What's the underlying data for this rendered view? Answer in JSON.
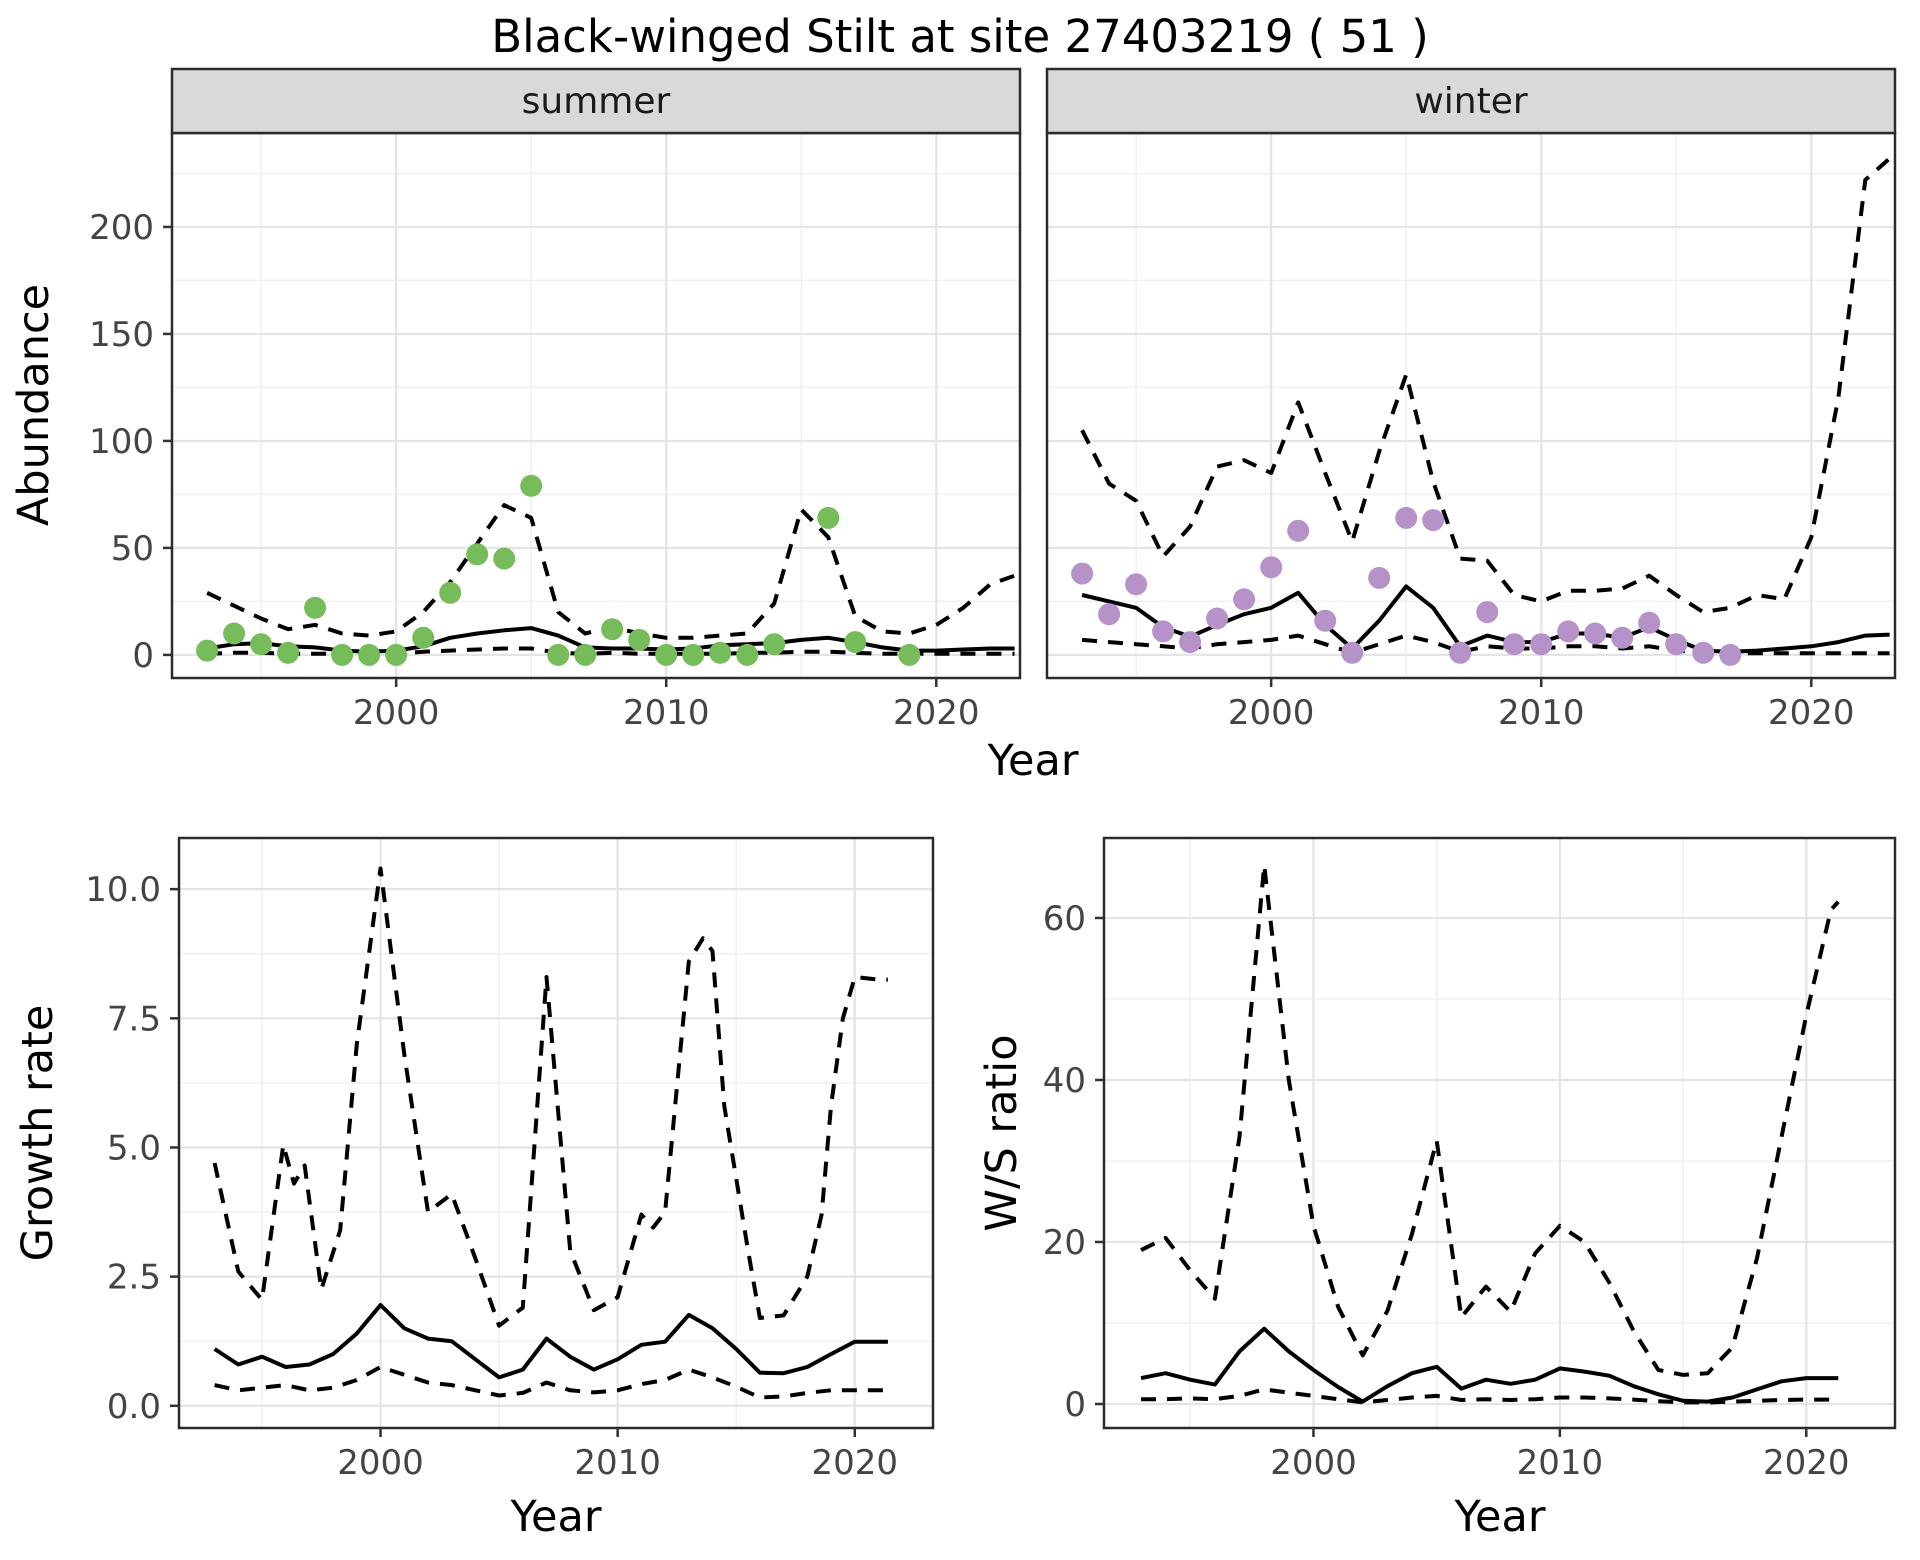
{
  "title": "Black-winged Stilt at site 27403219 ( 51 )",
  "facets": {
    "summer_label": "summer",
    "winter_label": "winter"
  },
  "axis_titles": {
    "abundance": "Abundance",
    "year_top": "Year",
    "growth_rate": "Growth rate",
    "ws_ratio": "W/S ratio",
    "year_bottom_left": "Year",
    "year_bottom_right": "Year"
  },
  "colors": {
    "summer_point": "#76BC5B",
    "winter_point": "#B593C8",
    "mean_line": "#000000",
    "ci_line": "#000000",
    "grid_major": "#E4E4E4",
    "grid_minor": "#F0F0F0",
    "strip_fill": "#D9D9D9",
    "strip_border": "#2B2B2B",
    "panel_border": "#2B2B2B",
    "tick_mark": "#333333",
    "tick_label": "#444444"
  },
  "chart_data": [
    {
      "id": "abundance_summer",
      "type": "line+scatter",
      "facet_label": "summer",
      "xlabel": "Year",
      "ylabel": "Abundance",
      "xlim": [
        1991.7,
        2023.1
      ],
      "ylim": [
        -10.8,
        243.9
      ],
      "x_ticks": [
        2000,
        2010,
        2020
      ],
      "x_tick_labels": [
        "2000",
        "2010",
        "2020"
      ],
      "x_minor": [
        1995,
        2005,
        2015
      ],
      "y_ticks": [
        0,
        50,
        100,
        150,
        200
      ],
      "y_tick_labels": [
        "0",
        "50",
        "100",
        "150",
        "200"
      ],
      "y_minor": [
        25,
        75,
        125,
        175,
        225
      ],
      "point_color": "#76BC5B",
      "series": {
        "observed_points": {
          "years": [
            1993,
            1994,
            1995,
            1996,
            1997,
            1998,
            1999,
            2000,
            2001,
            2002,
            2003,
            2004,
            2005,
            2006,
            2007,
            2008,
            2009,
            2010,
            2011,
            2012,
            2013,
            2014,
            2016,
            2017,
            2019
          ],
          "values": [
            2,
            10,
            5,
            1,
            22,
            0,
            0,
            0,
            8,
            29,
            47,
            45,
            79,
            0,
            0,
            12,
            7,
            0,
            0,
            1,
            0,
            5,
            64,
            6,
            0
          ]
        },
        "mean": {
          "years": [
            1993,
            1994,
            1995,
            1996,
            1997,
            1998,
            1999,
            2000,
            2001,
            2002,
            2003,
            2004,
            2005,
            2006,
            2007,
            2008,
            2009,
            2010,
            2011,
            2012,
            2013,
            2014,
            2015,
            2016,
            2017,
            2018,
            2019,
            2020,
            2021,
            2022,
            2022.9
          ],
          "values": [
            3,
            5,
            5.5,
            4,
            3.5,
            2,
            1.5,
            2,
            4,
            8,
            10,
            11.5,
            12.5,
            9,
            3.5,
            3,
            3,
            2.5,
            3,
            4.5,
            5,
            5.5,
            7,
            8,
            6,
            3.5,
            2,
            2,
            2.5,
            3,
            3
          ]
        },
        "upper_ci": {
          "years": [
            1993,
            1994,
            1995,
            1996,
            1997,
            1998,
            1999,
            2000,
            2001,
            2002,
            2003,
            2004,
            2005,
            2006,
            2007,
            2008,
            2009,
            2010,
            2011,
            2012,
            2013,
            2014,
            2015,
            2016,
            2017,
            2018,
            2019,
            2020,
            2021,
            2022,
            2022.9
          ],
          "values": [
            29,
            23,
            17,
            12,
            14,
            10,
            9,
            11,
            20,
            34,
            52,
            70,
            64,
            20,
            10,
            13,
            10,
            8,
            8,
            9,
            10,
            24,
            68,
            55,
            18,
            11,
            10,
            14,
            22,
            33,
            37
          ]
        },
        "lower_ci": {
          "years": [
            1993,
            1994,
            1995,
            1996,
            1997,
            1998,
            1999,
            2000,
            2001,
            2002,
            2003,
            2004,
            2005,
            2006,
            2007,
            2008,
            2009,
            2010,
            2011,
            2012,
            2013,
            2014,
            2015,
            2016,
            2017,
            2018,
            2019,
            2020,
            2021,
            2022,
            2022.9
          ],
          "values": [
            0.5,
            1,
            1,
            0.5,
            0.5,
            0.5,
            0.5,
            0.5,
            1.5,
            2,
            2.5,
            3,
            3,
            1,
            0.5,
            1,
            0.5,
            0.5,
            0.5,
            0.5,
            1,
            1,
            1.5,
            1.5,
            1,
            0.5,
            0.5,
            0.5,
            0.5,
            0.5,
            0.5
          ]
        }
      }
    },
    {
      "id": "abundance_winter",
      "type": "line+scatter",
      "facet_label": "winter",
      "xlabel": "Year",
      "ylabel": "Abundance",
      "xlim": [
        1991.7,
        2023.1
      ],
      "ylim": [
        -10.8,
        243.9
      ],
      "x_ticks": [
        2000,
        2010,
        2020
      ],
      "x_tick_labels": [
        "2000",
        "2010",
        "2020"
      ],
      "x_minor": [
        1995,
        2005,
        2015
      ],
      "y_ticks": [
        0,
        50,
        100,
        150,
        200
      ],
      "y_tick_labels": [
        "0",
        "50",
        "100",
        "150",
        "200"
      ],
      "y_minor": [
        25,
        75,
        125,
        175,
        225
      ],
      "point_color": "#B593C8",
      "series": {
        "observed_points": {
          "years": [
            1993,
            1994,
            1995,
            1996,
            1997,
            1998,
            1999,
            2000,
            2001,
            2002,
            2003,
            2004,
            2005,
            2006,
            2007,
            2008,
            2009,
            2010,
            2011,
            2012,
            2013,
            2014,
            2015,
            2016,
            2017
          ],
          "values": [
            38,
            19,
            33,
            11,
            6,
            17,
            26,
            41,
            58,
            16,
            1,
            36,
            64,
            63,
            1,
            20,
            5,
            5,
            11,
            10,
            8,
            15,
            5,
            1,
            0
          ]
        },
        "mean": {
          "years": [
            1993,
            1994,
            1995,
            1996,
            1997,
            1998,
            1999,
            2000,
            2001,
            2002,
            2003,
            2004,
            2005,
            2006,
            2007,
            2008,
            2009,
            2010,
            2011,
            2012,
            2013,
            2014,
            2015,
            2016,
            2017,
            2018,
            2019,
            2020,
            2021,
            2022,
            2022.9
          ],
          "values": [
            28,
            25,
            22,
            13,
            8.5,
            14,
            19,
            22,
            29,
            14,
            3,
            16,
            32,
            22,
            4,
            9,
            6,
            6,
            10,
            10,
            8,
            13,
            7,
            2,
            1.5,
            2,
            3,
            4,
            6,
            9,
            9.5
          ]
        },
        "upper_ci": {
          "years": [
            1993,
            1994,
            1995,
            1996,
            1997,
            1998,
            1999,
            2000,
            2001,
            2002,
            2003,
            2004,
            2005,
            2006,
            2007,
            2008,
            2009,
            2010,
            2011,
            2012,
            2013,
            2014,
            2015,
            2016,
            2017,
            2018,
            2019,
            2020,
            2021,
            2022,
            2022.9
          ],
          "values": [
            105,
            80,
            72,
            46,
            60,
            88,
            91,
            85,
            118,
            85,
            53,
            95,
            131,
            81,
            45,
            44,
            28,
            25,
            30,
            30,
            31,
            37,
            28,
            20,
            22,
            28,
            26,
            55,
            120,
            222,
            232
          ]
        },
        "lower_ci": {
          "years": [
            1993,
            1994,
            1995,
            1996,
            1997,
            1998,
            1999,
            2000,
            2001,
            2002,
            2003,
            2004,
            2005,
            2006,
            2007,
            2008,
            2009,
            2010,
            2011,
            2012,
            2013,
            2014,
            2015,
            2016,
            2017,
            2018,
            2019,
            2020,
            2021,
            2022,
            2022.9
          ],
          "values": [
            7,
            6,
            5,
            4,
            3,
            5,
            6,
            7,
            9,
            5,
            1,
            5,
            9,
            6,
            1.5,
            4,
            3,
            3,
            4,
            4,
            3,
            4,
            2,
            1,
            0.8,
            0.8,
            0.8,
            0.8,
            0.8,
            0.8,
            0.8
          ]
        }
      }
    },
    {
      "id": "growth_rate",
      "type": "line",
      "xlabel": "Year",
      "ylabel": "Growth rate",
      "xlim": [
        1991.5,
        2023.3
      ],
      "ylim": [
        -0.43,
        10.99
      ],
      "x_ticks": [
        2000,
        2010,
        2020
      ],
      "x_tick_labels": [
        "2000",
        "2010",
        "2020"
      ],
      "x_minor": [
        1995,
        2005,
        2015
      ],
      "y_ticks": [
        0,
        2.5,
        5,
        7.5,
        10
      ],
      "y_tick_labels": [
        "0.0",
        "2.5",
        "5.0",
        "7.5",
        "10.0"
      ],
      "y_minor": [
        1.25,
        3.75,
        6.25,
        8.75
      ],
      "series": {
        "mean": {
          "years": [
            1993,
            1994,
            1995,
            1996,
            1997,
            1998,
            1999,
            2000,
            2001,
            2002,
            2003,
            2004,
            2005,
            2006,
            2007,
            2008,
            2009,
            2010,
            2011,
            2012,
            2013,
            2014,
            2015,
            2016,
            2017,
            2018,
            2019,
            2020,
            2021,
            2021.4
          ],
          "values": [
            1.1,
            0.8,
            0.95,
            0.75,
            0.8,
            1.0,
            1.4,
            1.95,
            1.5,
            1.3,
            1.25,
            0.9,
            0.55,
            0.7,
            1.3,
            0.95,
            0.7,
            0.9,
            1.18,
            1.24,
            1.76,
            1.5,
            1.1,
            0.64,
            0.63,
            0.75,
            1.0,
            1.24,
            1.24,
            1.24
          ]
        },
        "upper_ci": {
          "years": [
            1993,
            1994,
            1995,
            1995.9,
            1996.35,
            1996.8,
            1997.5,
            1998.3,
            1999,
            2000,
            2001,
            2002,
            2003,
            2004,
            2005,
            2006,
            2007,
            2008,
            2009,
            2010,
            2011,
            2011.5,
            2012,
            2013,
            2013.6,
            2014,
            2014.5,
            2015,
            2015.5,
            2016,
            2017,
            2018,
            2018.6,
            2019,
            2019.5,
            2020,
            2021,
            2021.4
          ],
          "values": [
            4.7,
            2.6,
            2.05,
            5.05,
            4.3,
            4.65,
            2.25,
            3.4,
            7.0,
            10.4,
            6.8,
            3.75,
            4.1,
            2.85,
            1.55,
            1.9,
            8.3,
            3.0,
            1.85,
            2.1,
            3.7,
            3.45,
            3.75,
            8.6,
            9.05,
            8.8,
            5.8,
            4.4,
            3.0,
            1.7,
            1.75,
            2.5,
            3.7,
            5.8,
            7.5,
            8.3,
            8.25,
            8.25
          ]
        },
        "lower_ci": {
          "years": [
            1993,
            1994,
            1995,
            1996,
            1997,
            1998,
            1999,
            2000,
            2001,
            2002,
            2003,
            2004,
            2005,
            2006,
            2007,
            2008,
            2009,
            2010,
            2011,
            2012,
            2013,
            2014,
            2015,
            2016,
            2017,
            2018,
            2019,
            2020,
            2021,
            2021.4
          ],
          "values": [
            0.4,
            0.3,
            0.35,
            0.4,
            0.3,
            0.35,
            0.5,
            0.75,
            0.6,
            0.45,
            0.4,
            0.3,
            0.2,
            0.25,
            0.45,
            0.3,
            0.26,
            0.3,
            0.42,
            0.5,
            0.7,
            0.55,
            0.37,
            0.16,
            0.18,
            0.25,
            0.3,
            0.3,
            0.3,
            0.3
          ]
        }
      }
    },
    {
      "id": "ws_ratio",
      "type": "line",
      "xlabel": "Year",
      "ylabel": "W/S ratio",
      "xlim": [
        1991.5,
        2023.6
      ],
      "ylim": [
        -2.96,
        69.87
      ],
      "x_ticks": [
        2000,
        2010,
        2020
      ],
      "x_tick_labels": [
        "2000",
        "2010",
        "2020"
      ],
      "x_minor": [
        1995,
        2005,
        2015
      ],
      "y_ticks": [
        0,
        20,
        40,
        60
      ],
      "y_tick_labels": [
        "0",
        "20",
        "40",
        "60"
      ],
      "y_minor": [
        10,
        30,
        50
      ],
      "series": {
        "mean": {
          "years": [
            1993,
            1994,
            1995,
            1996,
            1997,
            1998,
            1999,
            2000,
            2001,
            2002,
            2003,
            2004,
            2005,
            2006,
            2007,
            2008,
            2009,
            2010,
            2011,
            2012,
            2013,
            2014,
            2015,
            2016,
            2017,
            2018,
            2019,
            2020,
            2021,
            2021.3
          ],
          "values": [
            3.2,
            3.8,
            3.0,
            2.4,
            6.5,
            9.3,
            6.5,
            4.2,
            2.1,
            0.3,
            2.2,
            3.8,
            4.6,
            1.9,
            3.0,
            2.5,
            3.0,
            4.4,
            4.0,
            3.5,
            2.2,
            1.2,
            0.4,
            0.3,
            0.8,
            1.8,
            2.8,
            3.2,
            3.2,
            3.2
          ]
        },
        "upper_ci": {
          "years": [
            1993,
            1994,
            1995,
            1996,
            1997,
            1998,
            1999,
            2000,
            2001,
            2002,
            2003,
            2004,
            2005,
            2006,
            2007,
            2008,
            2009,
            2010,
            2011,
            2012,
            2013,
            2014,
            2015,
            2016,
            2017,
            2018,
            2019,
            2020,
            2021,
            2021.3
          ],
          "values": [
            19,
            20.5,
            16.5,
            13,
            33,
            66.5,
            40,
            22,
            12,
            6,
            11.5,
            21,
            32.5,
            10.7,
            14.5,
            11.4,
            18.6,
            22,
            20,
            15,
            9,
            4.2,
            3.6,
            3.8,
            7,
            18,
            33,
            48,
            61,
            62
          ]
        },
        "lower_ci": {
          "years": [
            1993,
            1994,
            1995,
            1996,
            1997,
            1998,
            1999,
            2000,
            2001,
            2002,
            2003,
            2004,
            2005,
            2006,
            2007,
            2008,
            2009,
            2010,
            2011,
            2012,
            2013,
            2014,
            2015,
            2016,
            2017,
            2018,
            2019,
            2020,
            2021,
            2021.3
          ],
          "values": [
            0.6,
            0.6,
            0.7,
            0.6,
            1.0,
            1.8,
            1.4,
            1.0,
            0.6,
            0.2,
            0.5,
            0.8,
            1.0,
            0.5,
            0.6,
            0.5,
            0.6,
            0.8,
            0.8,
            0.7,
            0.55,
            0.35,
            0.2,
            0.2,
            0.3,
            0.4,
            0.5,
            0.55,
            0.55,
            0.55
          ]
        }
      }
    }
  ]
}
